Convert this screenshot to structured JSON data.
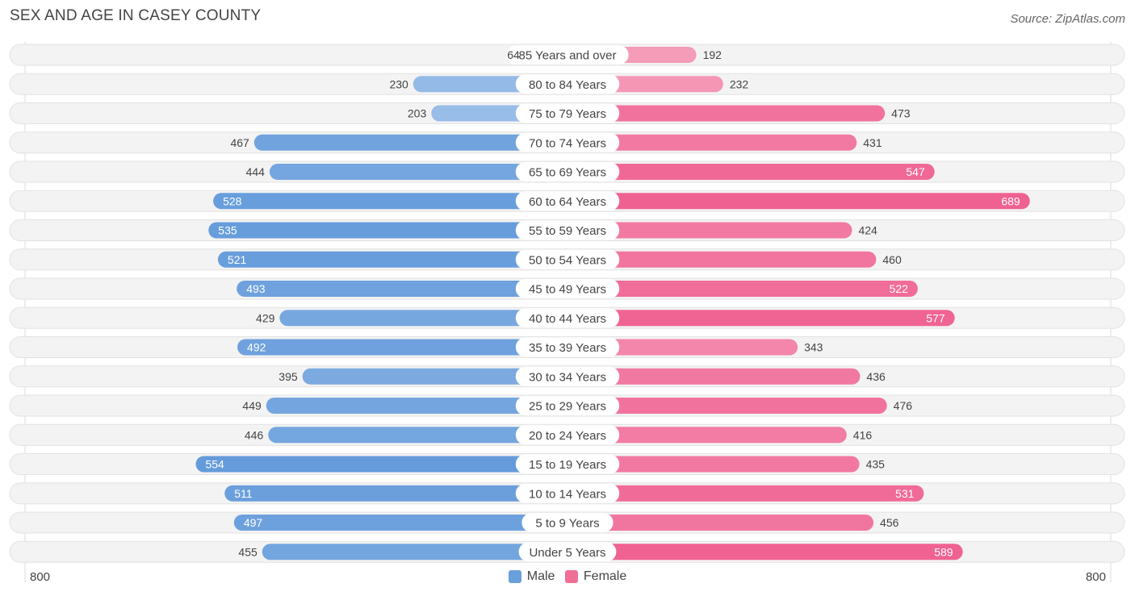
{
  "title": "SEX AND AGE IN CASEY COUNTY",
  "source": "Source: ZipAtlas.com",
  "axis": {
    "left_label": "800",
    "right_label": "800"
  },
  "legend": [
    {
      "label": "Male",
      "color": "#6a9fdb"
    },
    {
      "label": "Female",
      "color": "#f06f97"
    }
  ],
  "chart_data": {
    "type": "bar",
    "orientation": "horizontal-butterfly",
    "title": "SEX AND AGE IN CASEY COUNTY",
    "xlim": [
      -800,
      800
    ],
    "categories": [
      "85 Years and over",
      "80 to 84 Years",
      "75 to 79 Years",
      "70 to 74 Years",
      "65 to 69 Years",
      "60 to 64 Years",
      "55 to 59 Years",
      "50 to 54 Years",
      "45 to 49 Years",
      "40 to 44 Years",
      "35 to 39 Years",
      "30 to 34 Years",
      "25 to 29 Years",
      "20 to 24 Years",
      "15 to 19 Years",
      "10 to 14 Years",
      "5 to 9 Years",
      "Under 5 Years"
    ],
    "series": [
      {
        "name": "Male",
        "values": [
          64,
          230,
          203,
          467,
          444,
          528,
          535,
          521,
          493,
          429,
          492,
          395,
          449,
          446,
          554,
          511,
          497,
          455
        ]
      },
      {
        "name": "Female",
        "values": [
          192,
          232,
          473,
          431,
          547,
          689,
          424,
          460,
          522,
          577,
          343,
          436,
          476,
          416,
          435,
          531,
          456,
          589
        ]
      }
    ]
  }
}
